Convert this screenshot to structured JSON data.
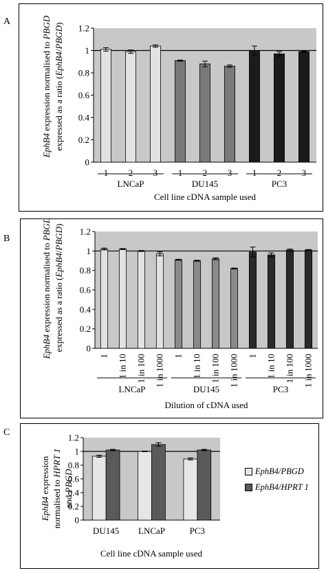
{
  "panels": [
    {
      "letter": "A"
    },
    {
      "letter": "B"
    },
    {
      "letter": "C"
    }
  ],
  "chart_data": [
    {
      "type": "bar",
      "title": "",
      "ylabel_lines": [
        [
          {
            "t": "EphB4",
            "i": true
          },
          {
            "t": " expression normalised to ",
            "i": false
          },
          {
            "t": "PBGD",
            "i": true
          }
        ],
        [
          {
            "t": "expressed as a ratio (",
            "i": false
          },
          {
            "t": "EphB4",
            "i": true
          },
          {
            "t": "/",
            "i": false
          },
          {
            "t": "PBGD",
            "i": true
          },
          {
            "t": ")",
            "i": false
          }
        ]
      ],
      "xlabel": "Cell line cDNA sample used",
      "ylim": [
        0,
        1.2
      ],
      "yticks": [
        "0",
        "0.2",
        "0.4",
        "0.6",
        "0.8",
        "1",
        "1.2"
      ],
      "reference_line": 1,
      "groups": [
        "LNCaP",
        "DU145",
        "PC3"
      ],
      "categories": [
        "1",
        "2",
        "3",
        "1",
        "2",
        "3",
        "1",
        "2",
        "3"
      ],
      "values": [
        1.01,
        0.99,
        1.04,
        0.91,
        0.88,
        0.86,
        1.0,
        0.97,
        0.99
      ],
      "errors": [
        0.015,
        0.015,
        0.01,
        0.005,
        0.025,
        0.01,
        0.04,
        0.02,
        0.005
      ],
      "colors": [
        "#e2e2e2",
        "#e2e2e2",
        "#e2e2e2",
        "#7a7a7a",
        "#7a7a7a",
        "#7a7a7a",
        "#1b1b1b",
        "#1b1b1b",
        "#1b1b1b"
      ]
    },
    {
      "type": "bar",
      "title": "",
      "ylabel_lines": [
        [
          {
            "t": "EphB4",
            "i": true
          },
          {
            "t": " expression normalised to ",
            "i": false
          },
          {
            "t": "PBGD",
            "i": true
          }
        ],
        [
          {
            "t": "expressed as a ratio (",
            "i": false
          },
          {
            "t": "EphB4",
            "i": true
          },
          {
            "t": "/",
            "i": false
          },
          {
            "t": "PBGD",
            "i": true
          },
          {
            "t": ")",
            "i": false
          }
        ]
      ],
      "xlabel": "Dilution of cDNA used",
      "ylim": [
        0,
        1.2
      ],
      "yticks": [
        "0",
        "0.2",
        "0.4",
        "0.6",
        "0.8",
        "1",
        "1.2"
      ],
      "reference_line": 1,
      "groups": [
        "LNCaP",
        "DU145",
        "PC3"
      ],
      "categories": [
        "1",
        "1 in 10",
        "1 in 100",
        "1 in 1000",
        "1",
        "1 in 10",
        "1 in 100",
        "1 in 1000",
        "1",
        "1 in 10",
        "1 in 100",
        "1 in 1000"
      ],
      "values": [
        1.02,
        1.02,
        1.0,
        0.97,
        0.91,
        0.9,
        0.92,
        0.82,
        0.99,
        0.96,
        1.01,
        1.01
      ],
      "errors": [
        0.01,
        0.005,
        0.005,
        0.02,
        0.005,
        0.005,
        0.01,
        0.005,
        0.05,
        0.02,
        0.01,
        0.005
      ],
      "colors": [
        "#e2e2e2",
        "#e2e2e2",
        "#e2e2e2",
        "#e2e2e2",
        "#8a8a8a",
        "#8a8a8a",
        "#8a8a8a",
        "#8a8a8a",
        "#2a2a2a",
        "#2a2a2a",
        "#2a2a2a",
        "#2a2a2a"
      ]
    },
    {
      "type": "bar",
      "title": "",
      "ylabel_lines": [
        [
          {
            "t": "EphB4",
            "i": true
          },
          {
            "t": " expression",
            "i": false
          }
        ],
        [
          {
            "t": "normalised to ",
            "i": false
          },
          {
            "t": "HPRT 1",
            "i": true
          }
        ],
        [
          {
            "t": "and ",
            "i": false
          },
          {
            "t": "PBGD",
            "i": true
          }
        ]
      ],
      "xlabel": "Cell line cDNA sample used",
      "ylim": [
        0,
        1.2
      ],
      "yticks": [
        "0",
        "0.2",
        "0.4",
        "0.6",
        "0.8",
        "1",
        "1.2"
      ],
      "reference_line": 1,
      "categories": [
        "DU145",
        "LNCaP",
        "PC3"
      ],
      "series": [
        {
          "name": "EphB4/PBGD",
          "values": [
            0.93,
            1.0,
            0.89
          ],
          "errors": [
            0.015,
            0.005,
            0.015
          ],
          "color": "#e6e6e6"
        },
        {
          "name": "EphB4/HPRT 1",
          "values": [
            1.02,
            1.1,
            1.02
          ],
          "errors": [
            0.01,
            0.025,
            0.01
          ],
          "color": "#5a5a5a"
        }
      ]
    }
  ]
}
